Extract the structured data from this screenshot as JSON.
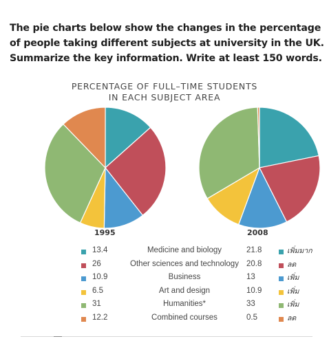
{
  "prompt": {
    "lines": [
      "The pie charts below show the changes in the percentage",
      "of people taking different subjects at university in the UK.",
      "Summarize the key information. Write at least 150 words."
    ]
  },
  "chart_data": {
    "type": "pie",
    "title_lines": [
      "PERCENTAGE OF FULL–TIME STUDENTS",
      "IN EACH SUBJECT AREA"
    ],
    "categories": [
      "Medicine and biology",
      "Other sciences and technology",
      "Business",
      "Art and design",
      "Humanities*",
      "Combined courses"
    ],
    "colors": [
      "#3aa2ad",
      "#c04f5a",
      "#4c9ad0",
      "#f3c33b",
      "#8fb873",
      "#e0884f"
    ],
    "series": [
      {
        "name": "1995",
        "values": [
          13.4,
          26,
          10.9,
          6.5,
          31,
          12.2
        ]
      },
      {
        "name": "2008",
        "values": [
          21.8,
          20.8,
          13,
          10.9,
          33,
          0.5
        ]
      }
    ],
    "display_values": {
      "1995": [
        "13.4",
        "26",
        "10.9",
        "6.5",
        "31",
        "12.2"
      ],
      "2008": [
        "21.8",
        "20.8",
        "13",
        "10.9",
        "33",
        "0.5"
      ]
    },
    "legend": "bottom"
  },
  "handwritten_notes": [
    "เพิ่มมาก",
    "ลด",
    "เพิ่ม",
    "เพิ่ม",
    "เพิ่ม",
    "ลด"
  ]
}
